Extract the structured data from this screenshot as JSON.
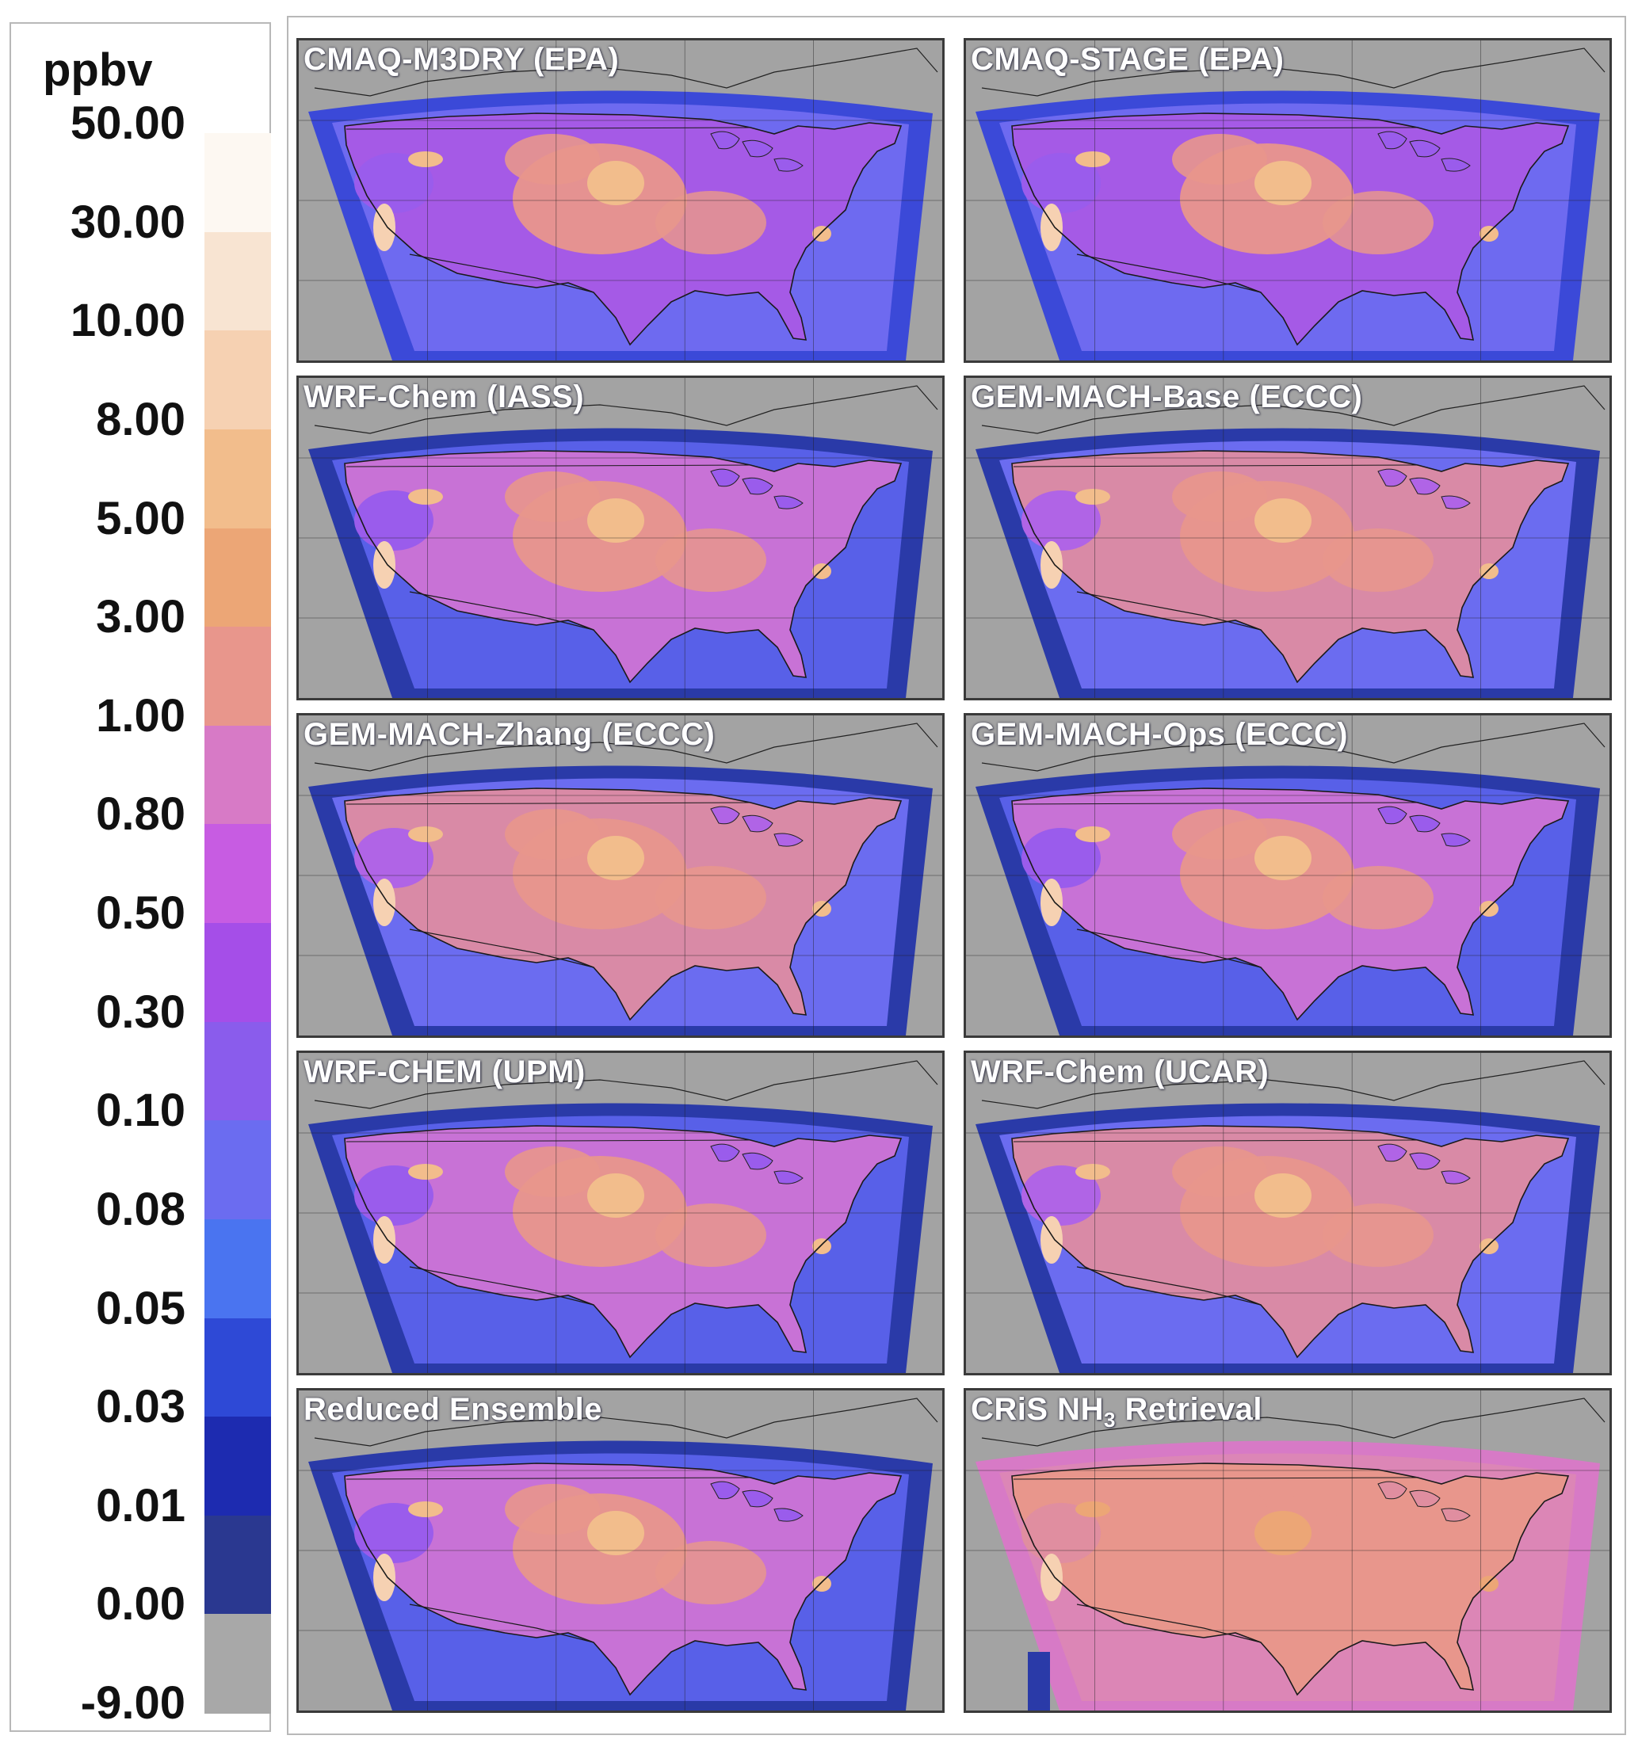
{
  "legend": {
    "unit": "ppbv",
    "ticks": [
      "50.00",
      "30.00",
      "10.00",
      "8.00",
      "5.00",
      "3.00",
      "1.00",
      "0.80",
      "0.50",
      "0.30",
      "0.10",
      "0.08",
      "0.05",
      "0.03",
      "0.01",
      "0.00",
      "-9.00"
    ],
    "colors": [
      "#fdf8f2",
      "#f8e4d2",
      "#f6d1b2",
      "#f2bd8c",
      "#eca676",
      "#e8968c",
      "#d77ac6",
      "#c75ce2",
      "#a54ee8",
      "#8a5cec",
      "#6b6cf0",
      "#4a74f0",
      "#2e49d6",
      "#1d2bb0",
      "#2a3890",
      "#a8a8a8"
    ]
  },
  "maps": [
    {
      "title": "CMAQ-M3DRY (EPA)",
      "style": "model-a"
    },
    {
      "title": "CMAQ-STAGE (EPA)",
      "style": "model-a"
    },
    {
      "title": "WRF-Chem (IASS)",
      "style": "model-b"
    },
    {
      "title": "GEM-MACH-Base (ECCC)",
      "style": "model-c"
    },
    {
      "title": "GEM-MACH-Zhang (ECCC)",
      "style": "model-c"
    },
    {
      "title": "GEM-MACH-Ops (ECCC)",
      "style": "model-b"
    },
    {
      "title": "WRF-CHEM (UPM)",
      "style": "model-b"
    },
    {
      "title": "WRF-Chem (UCAR)",
      "style": "model-c"
    },
    {
      "title": "Reduced Ensemble",
      "style": "model-b"
    },
    {
      "title_prefix": "CRiS NH",
      "title_sub": "3",
      "title_suffix": " Retrieval",
      "style": "retrieval"
    }
  ]
}
